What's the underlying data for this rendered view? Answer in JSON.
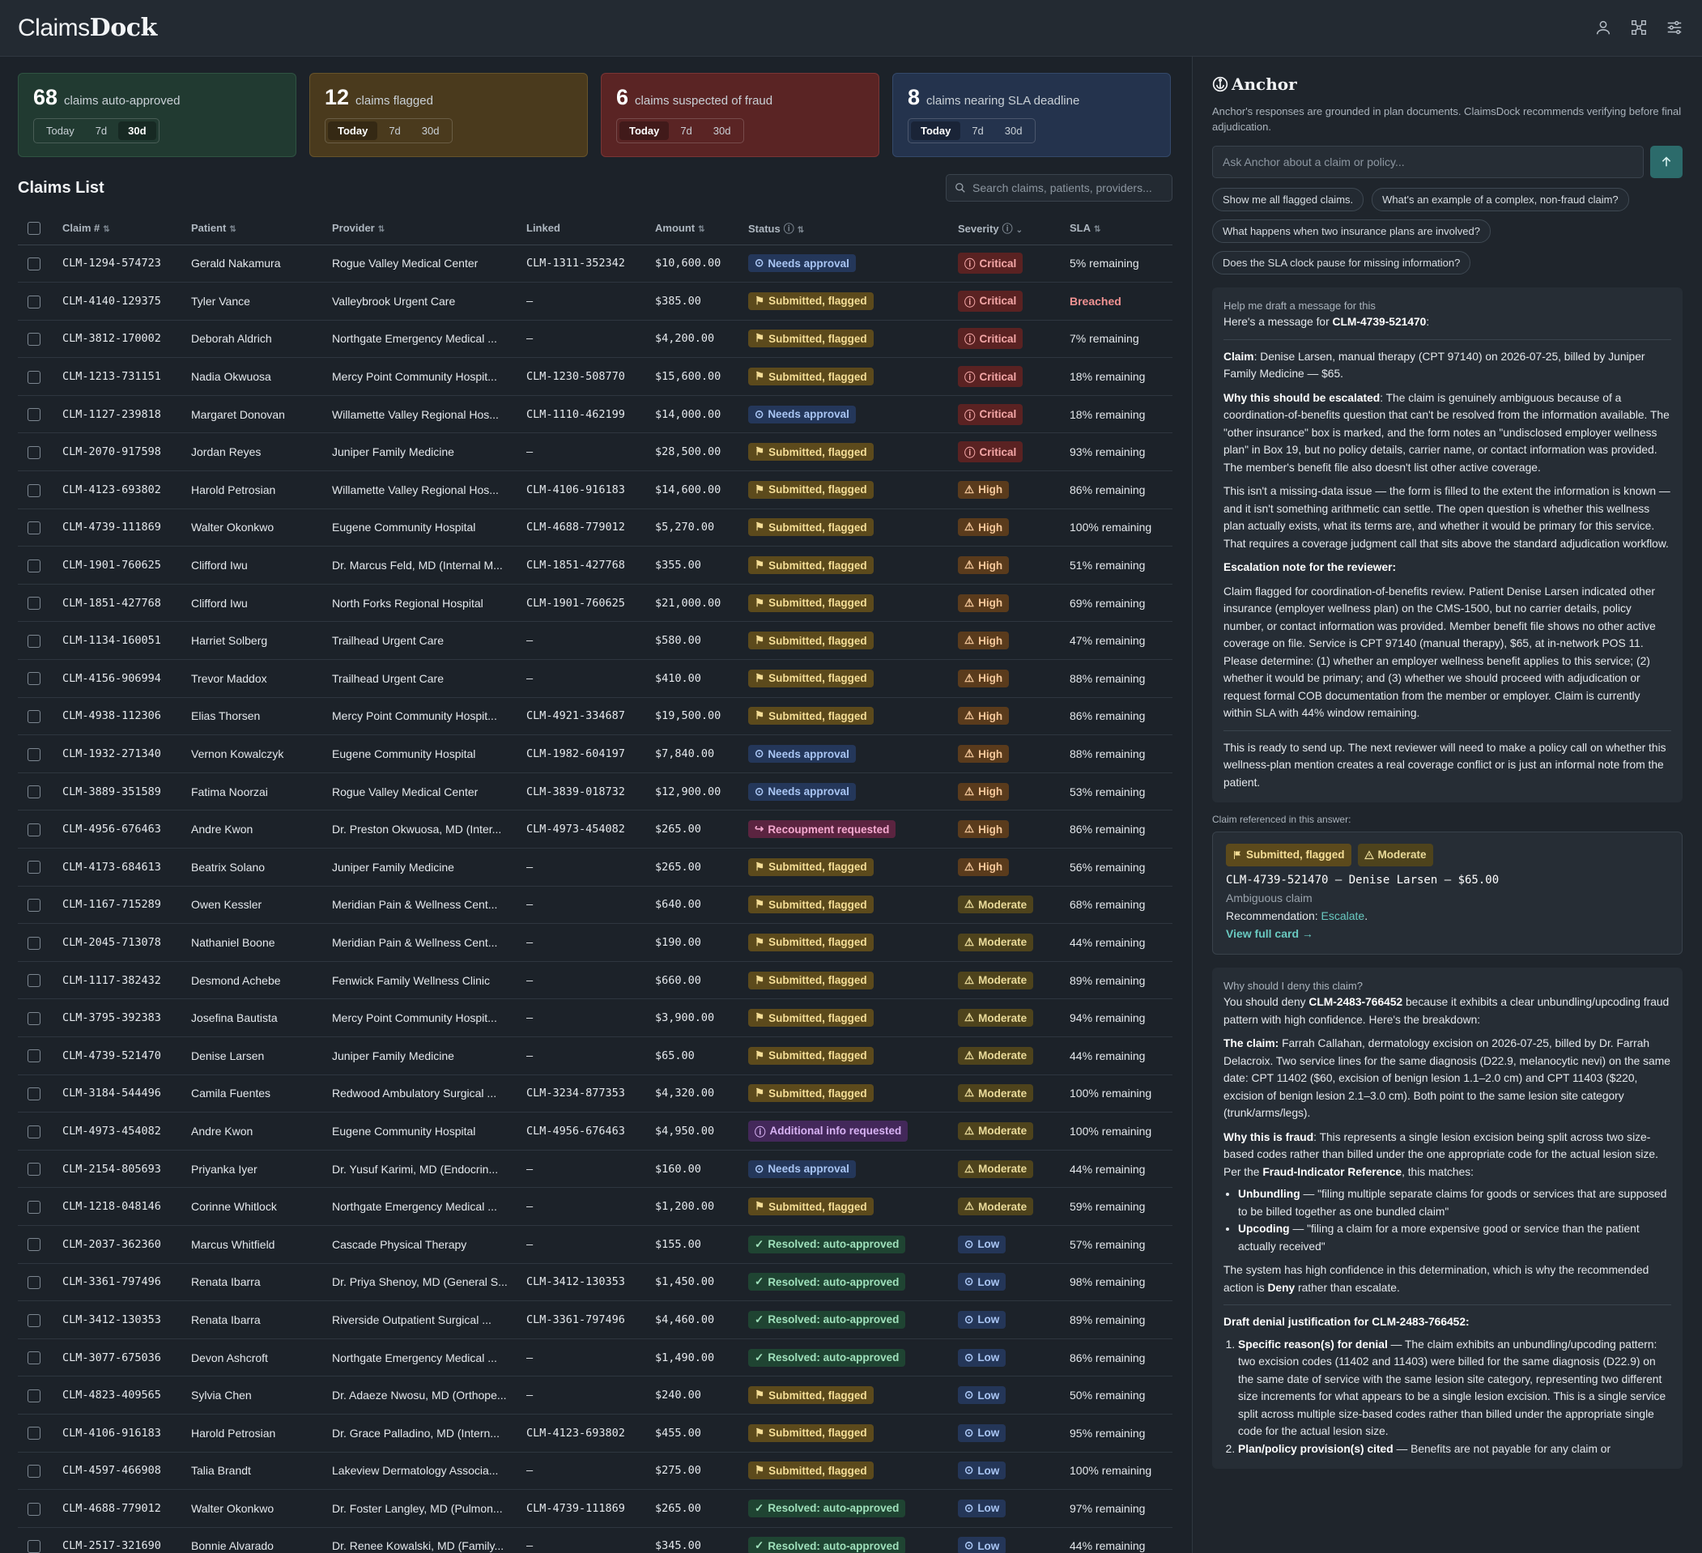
{
  "app": {
    "logo_light": "Claims",
    "logo_bold": "Dock"
  },
  "header_icons": [
    "user-icon",
    "network-icon",
    "sliders-icon"
  ],
  "stats": [
    {
      "num": "68",
      "label": "claims auto-approved",
      "active": "30d",
      "theme": "green"
    },
    {
      "num": "12",
      "label": "claims flagged",
      "active": "Today",
      "theme": "amber"
    },
    {
      "num": "6",
      "label": "claims suspected of fraud",
      "active": "Today",
      "theme": "red"
    },
    {
      "num": "8",
      "label": "claims nearing SLA deadline",
      "active": "Today",
      "theme": "blue"
    }
  ],
  "ranges": [
    "Today",
    "7d",
    "30d"
  ],
  "claims": {
    "title": "Claims List",
    "search_placeholder": "Search claims, patients, providers...",
    "columns": [
      "Claim #",
      "Patient",
      "Provider",
      "Linked",
      "Amount",
      "Status",
      "Severity",
      "SLA"
    ],
    "rows": [
      {
        "claim": "CLM-1294-574723",
        "patient": "Gerald Nakamura",
        "provider": "Rogue Valley Medical Center",
        "linked": "CLM-1311-352342",
        "amount": "$10,600.00",
        "status": "Needs approval",
        "severity": "Critical",
        "sla": "5% remaining"
      },
      {
        "claim": "CLM-4140-129375",
        "patient": "Tyler Vance",
        "provider": "Valleybrook Urgent Care",
        "linked": "—",
        "amount": "$385.00",
        "status": "Submitted, flagged",
        "severity": "Critical",
        "sla": "Breached"
      },
      {
        "claim": "CLM-3812-170002",
        "patient": "Deborah Aldrich",
        "provider": "Northgate Emergency Medical ...",
        "linked": "—",
        "amount": "$4,200.00",
        "status": "Submitted, flagged",
        "severity": "Critical",
        "sla": "7% remaining"
      },
      {
        "claim": "CLM-1213-731151",
        "patient": "Nadia Okwuosa",
        "provider": "Mercy Point Community Hospit...",
        "linked": "CLM-1230-508770",
        "amount": "$15,600.00",
        "status": "Submitted, flagged",
        "severity": "Critical",
        "sla": "18% remaining"
      },
      {
        "claim": "CLM-1127-239818",
        "patient": "Margaret Donovan",
        "provider": "Willamette Valley Regional Hos...",
        "linked": "CLM-1110-462199",
        "amount": "$14,000.00",
        "status": "Needs approval",
        "severity": "Critical",
        "sla": "18% remaining"
      },
      {
        "claim": "CLM-2070-917598",
        "patient": "Jordan Reyes",
        "provider": "Juniper Family Medicine",
        "linked": "—",
        "amount": "$28,500.00",
        "status": "Submitted, flagged",
        "severity": "Critical",
        "sla": "93% remaining"
      },
      {
        "claim": "CLM-4123-693802",
        "patient": "Harold Petrosian",
        "provider": "Willamette Valley Regional Hos...",
        "linked": "CLM-4106-916183",
        "amount": "$14,600.00",
        "status": "Submitted, flagged",
        "severity": "High",
        "sla": "86% remaining"
      },
      {
        "claim": "CLM-4739-111869",
        "patient": "Walter Okonkwo",
        "provider": "Eugene Community Hospital",
        "linked": "CLM-4688-779012",
        "amount": "$5,270.00",
        "status": "Submitted, flagged",
        "severity": "High",
        "sla": "100% remaining"
      },
      {
        "claim": "CLM-1901-760625",
        "patient": "Clifford Iwu",
        "provider": "Dr. Marcus Feld, MD (Internal M...",
        "linked": "CLM-1851-427768",
        "amount": "$355.00",
        "status": "Submitted, flagged",
        "severity": "High",
        "sla": "51% remaining"
      },
      {
        "claim": "CLM-1851-427768",
        "patient": "Clifford Iwu",
        "provider": "North Forks Regional Hospital",
        "linked": "CLM-1901-760625",
        "amount": "$21,000.00",
        "status": "Submitted, flagged",
        "severity": "High",
        "sla": "69% remaining"
      },
      {
        "claim": "CLM-1134-160051",
        "patient": "Harriet Solberg",
        "provider": "Trailhead Urgent Care",
        "linked": "—",
        "amount": "$580.00",
        "status": "Submitted, flagged",
        "severity": "High",
        "sla": "47% remaining"
      },
      {
        "claim": "CLM-4156-906994",
        "patient": "Trevor Maddox",
        "provider": "Trailhead Urgent Care",
        "linked": "—",
        "amount": "$410.00",
        "status": "Submitted, flagged",
        "severity": "High",
        "sla": "88% remaining"
      },
      {
        "claim": "CLM-4938-112306",
        "patient": "Elias Thorsen",
        "provider": "Mercy Point Community Hospit...",
        "linked": "CLM-4921-334687",
        "amount": "$19,500.00",
        "status": "Submitted, flagged",
        "severity": "High",
        "sla": "86% remaining"
      },
      {
        "claim": "CLM-1932-271340",
        "patient": "Vernon Kowalczyk",
        "provider": "Eugene Community Hospital",
        "linked": "CLM-1982-604197",
        "amount": "$7,840.00",
        "status": "Needs approval",
        "severity": "High",
        "sla": "88% remaining"
      },
      {
        "claim": "CLM-3889-351589",
        "patient": "Fatima Noorzai",
        "provider": "Rogue Valley Medical Center",
        "linked": "CLM-3839-018732",
        "amount": "$12,900.00",
        "status": "Needs approval",
        "severity": "High",
        "sla": "53% remaining"
      },
      {
        "claim": "CLM-4956-676463",
        "patient": "Andre Kwon",
        "provider": "Dr. Preston Okwuosa, MD (Inter...",
        "linked": "CLM-4973-454082",
        "amount": "$265.00",
        "status": "Recoupment requested",
        "severity": "High",
        "sla": "86% remaining"
      },
      {
        "claim": "CLM-4173-684613",
        "patient": "Beatrix Solano",
        "provider": "Juniper Family Medicine",
        "linked": "—",
        "amount": "$265.00",
        "status": "Submitted, flagged",
        "severity": "High",
        "sla": "56% remaining"
      },
      {
        "claim": "CLM-1167-715289",
        "patient": "Owen Kessler",
        "provider": "Meridian Pain & Wellness Cent...",
        "linked": "—",
        "amount": "$640.00",
        "status": "Submitted, flagged",
        "severity": "Moderate",
        "sla": "68% remaining"
      },
      {
        "claim": "CLM-2045-713078",
        "patient": "Nathaniel Boone",
        "provider": "Meridian Pain & Wellness Cent...",
        "linked": "—",
        "amount": "$190.00",
        "status": "Submitted, flagged",
        "severity": "Moderate",
        "sla": "44% remaining"
      },
      {
        "claim": "CLM-1117-382432",
        "patient": "Desmond Achebe",
        "provider": "Fenwick Family Wellness Clinic",
        "linked": "—",
        "amount": "$660.00",
        "status": "Submitted, flagged",
        "severity": "Moderate",
        "sla": "89% remaining"
      },
      {
        "claim": "CLM-3795-392383",
        "patient": "Josefina Bautista",
        "provider": "Mercy Point Community Hospit...",
        "linked": "—",
        "amount": "$3,900.00",
        "status": "Submitted, flagged",
        "severity": "Moderate",
        "sla": "94% remaining"
      },
      {
        "claim": "CLM-4739-521470",
        "patient": "Denise Larsen",
        "provider": "Juniper Family Medicine",
        "linked": "—",
        "amount": "$65.00",
        "status": "Submitted, flagged",
        "severity": "Moderate",
        "sla": "44% remaining"
      },
      {
        "claim": "CLM-3184-544496",
        "patient": "Camila Fuentes",
        "provider": "Redwood Ambulatory Surgical ...",
        "linked": "CLM-3234-877353",
        "amount": "$4,320.00",
        "status": "Submitted, flagged",
        "severity": "Moderate",
        "sla": "100% remaining"
      },
      {
        "claim": "CLM-4973-454082",
        "patient": "Andre Kwon",
        "provider": "Eugene Community Hospital",
        "linked": "CLM-4956-676463",
        "amount": "$4,950.00",
        "status": "Additional info requested",
        "severity": "Moderate",
        "sla": "100% remaining"
      },
      {
        "claim": "CLM-2154-805693",
        "patient": "Priyanka Iyer",
        "provider": "Dr. Yusuf Karimi, MD (Endocrin...",
        "linked": "—",
        "amount": "$160.00",
        "status": "Needs approval",
        "severity": "Moderate",
        "sla": "44% remaining"
      },
      {
        "claim": "CLM-1218-048146",
        "patient": "Corinne Whitlock",
        "provider": "Northgate Emergency Medical ...",
        "linked": "—",
        "amount": "$1,200.00",
        "status": "Submitted, flagged",
        "severity": "Moderate",
        "sla": "59% remaining"
      },
      {
        "claim": "CLM-2037-362360",
        "patient": "Marcus Whitfield",
        "provider": "Cascade Physical Therapy",
        "linked": "—",
        "amount": "$155.00",
        "status": "Resolved: auto-approved",
        "severity": "Low",
        "sla": "57% remaining"
      },
      {
        "claim": "CLM-3361-797496",
        "patient": "Renata Ibarra",
        "provider": "Dr. Priya Shenoy, MD (General S...",
        "linked": "CLM-3412-130353",
        "amount": "$1,450.00",
        "status": "Resolved: auto-approved",
        "severity": "Low",
        "sla": "98% remaining"
      },
      {
        "claim": "CLM-3412-130353",
        "patient": "Renata Ibarra",
        "provider": "Riverside Outpatient Surgical ...",
        "linked": "CLM-3361-797496",
        "amount": "$4,460.00",
        "status": "Resolved: auto-approved",
        "severity": "Low",
        "sla": "89% remaining"
      },
      {
        "claim": "CLM-3077-675036",
        "patient": "Devon Ashcroft",
        "provider": "Northgate Emergency Medical ...",
        "linked": "—",
        "amount": "$1,490.00",
        "status": "Resolved: auto-approved",
        "severity": "Low",
        "sla": "86% remaining"
      },
      {
        "claim": "CLM-4823-409565",
        "patient": "Sylvia Chen",
        "provider": "Dr. Adaeze Nwosu, MD (Orthope...",
        "linked": "—",
        "amount": "$240.00",
        "status": "Submitted, flagged",
        "severity": "Low",
        "sla": "50% remaining"
      },
      {
        "claim": "CLM-4106-916183",
        "patient": "Harold Petrosian",
        "provider": "Dr. Grace Palladino, MD (Intern...",
        "linked": "CLM-4123-693802",
        "amount": "$455.00",
        "status": "Submitted, flagged",
        "severity": "Low",
        "sla": "95% remaining"
      },
      {
        "claim": "CLM-4597-466908",
        "patient": "Talia Brandt",
        "provider": "Lakeview Dermatology Associa...",
        "linked": "—",
        "amount": "$275.00",
        "status": "Submitted, flagged",
        "severity": "Low",
        "sla": "100% remaining"
      },
      {
        "claim": "CLM-4688-779012",
        "patient": "Walter Okonkwo",
        "provider": "Dr. Foster Langley, MD (Pulmon...",
        "linked": "CLM-4739-111869",
        "amount": "$265.00",
        "status": "Resolved: auto-approved",
        "severity": "Low",
        "sla": "97% remaining"
      },
      {
        "claim": "CLM-2517-321690",
        "patient": "Bonnie Alvarado",
        "provider": "Dr. Renee Kowalski, MD (Family...",
        "linked": "—",
        "amount": "$345.00",
        "status": "Resolved: auto-approved",
        "severity": "Low",
        "sla": "44% remaining"
      }
    ]
  },
  "anchor": {
    "title": "Anchor",
    "subtitle": "Anchor's responses are grounded in plan documents. ClaimsDock recommends verifying before final adjudication.",
    "ask_placeholder": "Ask Anchor about a claim or policy...",
    "chips": [
      "Show me all flagged claims.",
      "What's an example of a complex, non-fraud claim?",
      "What happens when two insurance plans are involved?",
      "Does the SLA clock pause for missing information?"
    ],
    "msg1": {
      "question": "Help me draft a message for this",
      "intro_a": "Here's a message for ",
      "intro_b": "CLM-4739-521470",
      "intro_c": ":",
      "claim_label": "Claim",
      "claim_text": ": Denise Larsen, manual therapy (CPT 97140) on 2026-07-25, billed by Juniper Family Medicine — $65.",
      "why_label": "Why this should be escalated",
      "why_text": ": The claim is genuinely ambiguous because of a coordination-of-benefits question that can't be resolved from the information available. The \"other insurance\" box is marked, and the form notes an \"undisclosed employer wellness plan\" in Box 19, but no policy details, carrier name, or contact information was provided. The member's benefit file also doesn't list other active coverage.",
      "para2": "This isn't a missing-data issue — the form is filled to the extent the information is known — and it isn't something arithmetic can settle. The open question is whether this wellness plan actually exists, what its terms are, and whether it would be primary for this service. That requires a coverage judgment call that sits above the standard adjudication workflow.",
      "note_label": "Escalation note for the reviewer:",
      "note_text": "Claim flagged for coordination-of-benefits review. Patient Denise Larsen indicated other insurance (employer wellness plan) on the CMS-1500, but no carrier details, policy number, or contact information was provided. Member benefit file shows no other active coverage on file. Service is CPT 97140 (manual therapy), $65, at in-network POS 11. Please determine: (1) whether an employer wellness benefit applies to this service; (2) whether it would be primary; and (3) whether we should proceed with adjudication or request formal COB documentation from the member or employer. Claim is currently within SLA with 44% window remaining.",
      "closing": "This is ready to send up. The next reviewer will need to make a policy call on whether this wellness-plan mention creates a real coverage conflict or is just an informal note from the patient."
    },
    "ref": {
      "label": "Claim referenced in this answer:",
      "status": "Submitted, flagged",
      "severity": "Moderate",
      "title": "CLM-4739-521470 — Denise Larsen — $65.00",
      "category": "Ambiguous claim",
      "rec_label": "Recommendation: ",
      "rec_value": "Escalate",
      "rec_end": ".",
      "link": "View full card →"
    },
    "msg2": {
      "question": "Why should I deny this claim?",
      "intro_a": "You should deny ",
      "intro_b": "CLM-2483-766452",
      "intro_c": " because it exhibits a clear unbundling/upcoding fraud pattern with high confidence. Here's the breakdown:",
      "claim_label": "The claim:",
      "claim_text": " Farrah Callahan, dermatology excision on 2026-07-25, billed by Dr. Farrah Delacroix. Two service lines for the same diagnosis (D22.9, melanocytic nevi) on the same date: CPT 11402 ($60, excision of benign lesion 1.1–2.0 cm) and CPT 11403 ($220, excision of benign lesion 2.1–3.0 cm). Both point to the same lesion site category (trunk/arms/legs).",
      "why_label": "Why this is fraud",
      "why_text_a": ": This represents a single lesion excision being split across two size-based codes rather than billed under the one appropriate code for the actual lesion size. Per the ",
      "why_text_b": "Fraud-Indicator Reference",
      "why_text_c": ", this matches:",
      "bullet1_label": "Unbundling",
      "bullet1_text": " — \"filing multiple separate claims for goods or services that are supposed to be billed together as one bundled claim\"",
      "bullet2_label": "Upcoding",
      "bullet2_text": " — \"filing a claim for a more expensive good or service than the patient actually received\"",
      "conf_a": "The system has high confidence in this determination, which is why the recommended action is ",
      "conf_b": "Deny",
      "conf_c": " rather than escalate.",
      "draft_label": "Draft denial justification for CLM-2483-766452:",
      "item1_label": "Specific reason(s) for denial",
      "item1_text": " — The claim exhibits an unbundling/upcoding pattern: two excision codes (11402 and 11403) were billed for the same diagnosis (D22.9) on the same date of service with the same lesion site category, representing two different size increments for what appears to be a single lesion excision. This is a single service split across multiple size-based codes rather than billed under the appropriate single code for the actual lesion size.",
      "item2_label": "Plan/policy provision(s) cited",
      "item2_text": " — Benefits are not payable for any claim or"
    }
  }
}
